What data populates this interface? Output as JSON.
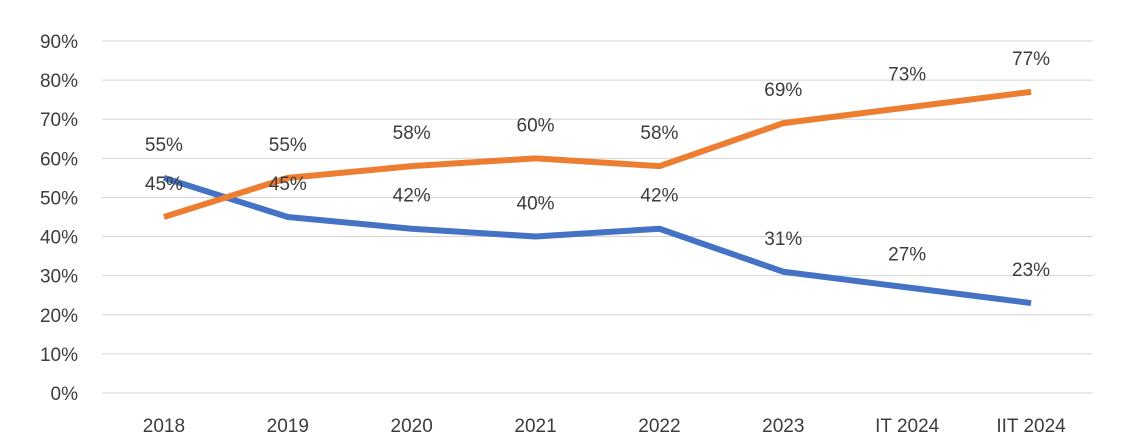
{
  "chart_data": {
    "type": "line",
    "title": "",
    "xlabel": "",
    "ylabel": "",
    "categories": [
      "2018",
      "2019",
      "2020",
      "2021",
      "2022",
      "2023",
      "IT 2024",
      "IIT 2024"
    ],
    "ylim": [
      0,
      90
    ],
    "yticks": [
      0,
      10,
      20,
      30,
      40,
      50,
      60,
      70,
      80,
      90
    ],
    "ytick_labels": [
      "0%",
      "10%",
      "20%",
      "30%",
      "40%",
      "50%",
      "60%",
      "70%",
      "80%",
      "90%"
    ],
    "grid": true,
    "legend": "none",
    "series": [
      {
        "color": "#4472C4",
        "values": [
          55,
          45,
          42,
          40,
          42,
          31,
          27,
          23
        ],
        "labels": [
          "55%",
          "45%",
          "42%",
          "40%",
          "42%",
          "31%",
          "27%",
          "23%"
        ]
      },
      {
        "color": "#ED7D31",
        "values": [
          45,
          55,
          58,
          60,
          58,
          69,
          73,
          77
        ],
        "labels": [
          "45%",
          "55%",
          "58%",
          "60%",
          "58%",
          "69%",
          "73%",
          "77%"
        ]
      }
    ]
  }
}
